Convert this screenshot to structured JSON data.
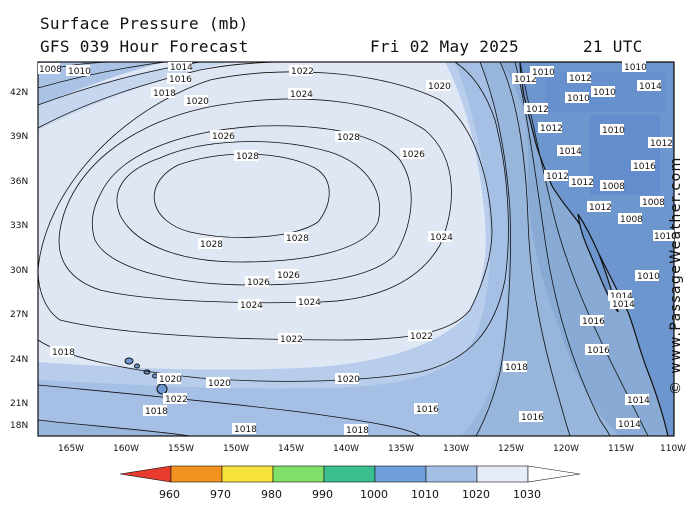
{
  "header": {
    "title": "Surface Pressure (mb)",
    "subtitle": "GFS 039 Hour Forecast",
    "date": "Fri 02 May 2025",
    "time": "21 UTC"
  },
  "watermark": "© www.PassageWeather.com",
  "map": {
    "lat_labels": [
      "42N",
      "39N",
      "36N",
      "33N",
      "30N",
      "27N",
      "24N",
      "21N",
      "18N"
    ],
    "lon_labels": [
      "165W",
      "160W",
      "155W",
      "150W",
      "145W",
      "140W",
      "135W",
      "130W",
      "125W",
      "120W",
      "115W",
      "110W"
    ],
    "contour_labels": {
      "c1030": [],
      "c1028": [
        "1028",
        "1028",
        "1028",
        "1028"
      ],
      "c1026": [
        "1026",
        "1026",
        "1026",
        "1026"
      ],
      "c1024": [
        "1024",
        "1024",
        "1024",
        "1024"
      ],
      "c1022": [
        "1022",
        "1022",
        "1022",
        "1022"
      ],
      "c1020": [
        "1020",
        "1020",
        "1020",
        "1020",
        "1020"
      ],
      "c1018": [
        "1018",
        "1018",
        "1018",
        "1018",
        "1018",
        "1018"
      ],
      "c1016": [
        "1016",
        "1016",
        "1016",
        "1016"
      ],
      "c1014": [
        "1014",
        "1014",
        "1014"
      ],
      "c1012": [
        "1012",
        "1012",
        "1012"
      ],
      "c1010": [
        "1010",
        "1010"
      ],
      "c1008": [
        "1008",
        "1008"
      ]
    },
    "land_labels": [
      "1012",
      "1010",
      "1010",
      "1012",
      "1014",
      "1012",
      "1010",
      "1008",
      "1010",
      "1014",
      "1008",
      "1010",
      "1012",
      "1014",
      "1016",
      "1016",
      "1014",
      "1012",
      "1010"
    ]
  },
  "colorbar": {
    "labels": [
      "960",
      "970",
      "980",
      "990",
      "1000",
      "1010",
      "1020",
      "1030"
    ],
    "colors": [
      "#e63b2e",
      "#f3931f",
      "#f7e23a",
      "#7fe06a",
      "#3bbf8f",
      "#6e9fdc",
      "#a3bfe6",
      "#e6ecf7"
    ]
  }
}
